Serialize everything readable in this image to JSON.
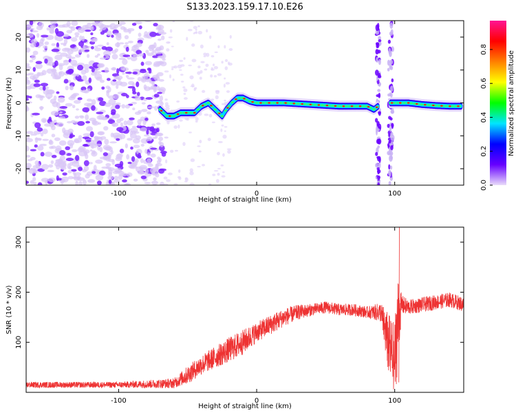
{
  "title": "S133.2023.159.17.10.E26",
  "chart_data": [
    {
      "type": "heatmap",
      "xlabel": "Height of straight line (km)",
      "ylabel": "Frequency (Hz)",
      "xlim": [
        -167,
        150
      ],
      "ylim": [
        -25,
        25
      ],
      "x_ticks": [
        -100,
        0,
        100
      ],
      "y_ticks": [
        -20,
        -10,
        0,
        10,
        20
      ],
      "grid": false,
      "colorbar": {
        "label": "Normalized spectral amplitude",
        "range": [
          0,
          0.97
        ],
        "ticks": [
          0.0,
          0.2,
          0.4,
          0.6,
          0.8
        ],
        "colors": [
          "#e9dcfa",
          "#6600ff",
          "#0000ff",
          "#00e5ff",
          "#00ff00",
          "#ffff00",
          "#ff8000",
          "#ff0000",
          "#ff1493"
        ]
      },
      "ridge": {
        "x": [
          -70,
          -65,
          -60,
          -55,
          -50,
          -45,
          -40,
          -35,
          -30,
          -25,
          -22,
          -18,
          -14,
          -10,
          -5,
          0,
          10,
          20,
          40,
          60,
          80,
          85,
          88
        ],
        "y": [
          -2,
          -4,
          -4,
          -3,
          -3,
          -3,
          -1,
          0,
          -2,
          -4,
          -2,
          0,
          1.5,
          1.5,
          0.5,
          0,
          0,
          0,
          -0.5,
          -1,
          -1,
          -2,
          -1
        ]
      },
      "ridge2": {
        "x": [
          97,
          100,
          110,
          120,
          130,
          140,
          148
        ],
        "y": [
          0,
          0,
          0,
          -0.5,
          -0.8,
          -1,
          -1
        ]
      }
    },
    {
      "type": "line",
      "xlabel": "Height of straight line (km)",
      "ylabel": "SNR (10 * v/v)",
      "xlim": [
        -167,
        150
      ],
      "ylim": [
        0,
        330
      ],
      "x_ticks": [
        -100,
        0,
        100
      ],
      "y_ticks": [
        100,
        200,
        300
      ],
      "grid": false,
      "series": [
        {
          "color": "#ee3333",
          "x": [
            -167,
            -100,
            -60,
            -50,
            -40,
            -30,
            -20,
            -10,
            0,
            10,
            20,
            30,
            40,
            50,
            60,
            70,
            80,
            85,
            90,
            95,
            100,
            102,
            105,
            110,
            120,
            130,
            140,
            145,
            150
          ],
          "y": [
            15,
            15,
            18,
            35,
            55,
            70,
            85,
            100,
            120,
            135,
            150,
            160,
            165,
            170,
            165,
            165,
            160,
            160,
            160,
            100,
            60,
            140,
            175,
            170,
            175,
            180,
            185,
            180,
            175
          ],
          "noise": [
            6,
            6,
            10,
            18,
            20,
            22,
            25,
            25,
            20,
            20,
            18,
            15,
            12,
            12,
            12,
            12,
            12,
            15,
            20,
            60,
            80,
            100,
            20,
            15,
            15,
            15,
            15,
            15,
            15
          ]
        }
      ]
    }
  ]
}
